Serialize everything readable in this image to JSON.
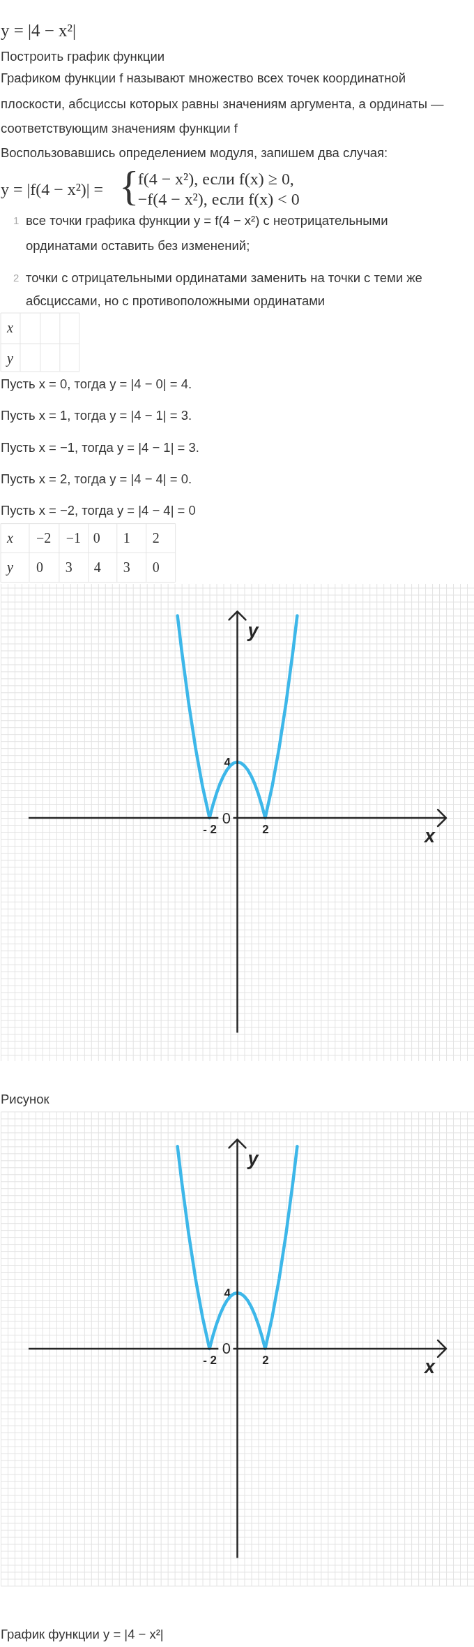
{
  "chart_data": [
    {
      "type": "line",
      "title": "y = |4 − x²|",
      "subtitle": "Построить график функции",
      "annotations": [
        "Графиком функции f называют множество всех точек координатной",
        "плоскости, абсциссы которых равны значениям аргумента, а ординаты —",
        "соответствующим значениям функции f",
        "Воспользовавшись определением модуля, запишем два случая:",
        "y = |f(4 − x²)| =",
        "{",
        "f(4 − x²), если f(x) ≥ 0,",
        "−f(4 − x²), если f(x) < 0",
        "1",
        "все точки графика функции y = f(4 − x²) с неотрицательными",
        "ординатами оставить без изменений;",
        "2",
        "точки с отрицательными ординатами заменить на точки с теми же",
        "абсциссами, но с противоположными ординатами",
        "x",
        "y",
        "Пусть x = 0, тогда y = |4 − 0| = 4.",
        "Пусть x = 1, тогда y = |4 − 1| = 3.",
        "Пусть x = −1, тогда y = |4 − 1| = 3.",
        "Пусть x = 2, тогда y = |4 − 4| = 0.",
        "Пусть x = −2, тогда y = |4 − 4| = 0",
        "x",
        "−2",
        "−1",
        "0",
        "1",
        "2",
        "y",
        "0",
        "3",
        "4",
        "3",
        "0"
      ],
      "xlabel": "x",
      "ylabel": "y",
      "x": [
        -4.3,
        -4,
        -3.5,
        -3,
        -2.5,
        -2,
        -1.75,
        -1.5,
        -1.25,
        -1,
        -0.75,
        -0.5,
        -0.25,
        0,
        0.25,
        0.5,
        0.75,
        1,
        1.25,
        1.5,
        1.75,
        2,
        2.5,
        3,
        3.5,
        4,
        4.3
      ],
      "series": [
        {
          "color": "#3db7e9",
          "values": [
            14.5,
            12,
            8.25,
            5,
            2.25,
            0,
            0.94,
            1.75,
            2.44,
            3,
            3.44,
            3.75,
            3.94,
            4,
            3.94,
            3.75,
            3.44,
            3,
            2.44,
            1.75,
            0.94,
            0,
            2.25,
            5,
            8.25,
            12,
            14.5
          ]
        }
      ],
      "xlim": [
        -17,
        17
      ],
      "ylim": [
        -17.4,
        16.8
      ],
      "xticks": [
        {
          "value": -17,
          "label": null
        },
        {
          "value": -16.5,
          "label": null
        },
        {
          "value": -16,
          "label": null
        },
        {
          "value": -15.5,
          "label": null
        },
        {
          "value": -15,
          "label": null
        },
        {
          "value": -14.5,
          "label": null
        },
        {
          "value": -14,
          "label": null
        },
        {
          "value": -13.5,
          "label": null
        },
        {
          "value": -13,
          "label": null
        },
        {
          "value": -12.5,
          "label": null
        },
        {
          "value": -12,
          "label": null
        },
        {
          "value": -11.5,
          "label": null
        },
        {
          "value": -11,
          "label": null
        },
        {
          "value": -10.5,
          "label": null
        },
        {
          "value": -10,
          "label": null
        },
        {
          "value": -9.5,
          "label": null
        },
        {
          "value": -9,
          "label": null
        },
        {
          "value": -8.5,
          "label": null
        },
        {
          "value": -8,
          "label": null
        },
        {
          "value": -7.5,
          "label": null
        },
        {
          "value": -7,
          "label": null
        },
        {
          "value": -6.5,
          "label": null
        },
        {
          "value": -6,
          "label": null
        },
        {
          "value": -5.5,
          "label": null
        },
        {
          "value": -5,
          "label": null
        },
        {
          "value": -4.5,
          "label": null
        },
        {
          "value": -4,
          "label": null
        },
        {
          "value": -3.5,
          "label": null
        },
        {
          "value": -3,
          "label": null
        },
        {
          "value": -2.5,
          "label": null
        },
        {
          "value": -2,
          "label": "- 2"
        },
        {
          "value": -1.5,
          "label": null
        },
        {
          "value": -1,
          "label": null
        },
        {
          "value": -0.5,
          "label": null
        },
        {
          "value": 0,
          "label": null
        },
        {
          "value": 0.5,
          "label": null
        },
        {
          "value": 1,
          "label": null
        },
        {
          "value": 1.5,
          "label": null
        },
        2,
        {
          "value": 2.5,
          "label": null
        },
        {
          "value": 3,
          "label": null
        },
        {
          "value": 3.5,
          "label": null
        },
        {
          "value": 4,
          "label": null
        },
        {
          "value": 4.5,
          "label": null
        },
        {
          "value": 5,
          "label": null
        },
        {
          "value": 5.5,
          "label": null
        },
        {
          "value": 6,
          "label": null
        },
        {
          "value": 6.5,
          "label": null
        },
        {
          "value": 7,
          "label": null
        },
        {
          "value": 7.5,
          "label": null
        },
        {
          "value": 8,
          "label": null
        },
        {
          "value": 8.5,
          "label": null
        },
        {
          "value": 9,
          "label": null
        },
        {
          "value": 9.5,
          "label": null
        },
        {
          "value": 10,
          "label": null
        },
        {
          "value": 10.5,
          "label": null
        },
        {
          "value": 11,
          "label": null
        },
        {
          "value": 11.5,
          "label": null
        },
        {
          "value": 12,
          "label": null
        },
        {
          "value": 12.5,
          "label": null
        },
        {
          "value": 13,
          "label": null
        },
        {
          "value": 13.5,
          "label": null
        },
        {
          "value": 14,
          "label": null
        },
        {
          "value": 14.5,
          "label": null
        },
        {
          "value": 15,
          "label": null
        },
        {
          "value": 15.5,
          "label": null
        },
        {
          "value": 16,
          "label": null
        },
        {
          "value": 16.5,
          "label": null
        },
        {
          "value": 17,
          "label": null
        }
      ],
      "yticks": [
        {
          "value": -17,
          "label": null
        },
        {
          "value": -16.5,
          "label": null
        },
        {
          "value": -16,
          "label": null
        },
        {
          "value": -15.5,
          "label": null
        },
        {
          "value": -15,
          "label": null
        },
        {
          "value": -14.5,
          "label": null
        },
        {
          "value": -14,
          "label": null
        },
        {
          "value": -13.5,
          "label": null
        },
        {
          "value": -13,
          "label": null
        },
        {
          "value": -12.5,
          "label": null
        },
        {
          "value": -12,
          "label": null
        },
        {
          "value": -11.5,
          "label": null
        },
        {
          "value": -11,
          "label": null
        },
        {
          "value": -10.5,
          "label": null
        },
        {
          "value": -10,
          "label": null
        },
        {
          "value": -9.5,
          "label": null
        },
        {
          "value": -9,
          "label": null
        },
        {
          "value": -8.5,
          "label": null
        },
        {
          "value": -8,
          "label": null
        },
        {
          "value": -7.5,
          "label": null
        },
        {
          "value": -7,
          "label": null
        },
        {
          "value": -6.5,
          "label": null
        },
        {
          "value": -6,
          "label": null
        },
        {
          "value": -5.5,
          "label": null
        },
        {
          "value": -5,
          "label": null
        },
        {
          "value": -4.5,
          "label": null
        },
        {
          "value": -4,
          "label": null
        },
        {
          "value": -3.5,
          "label": null
        },
        {
          "value": -3,
          "label": null
        },
        {
          "value": -2.5,
          "label": null
        },
        {
          "value": -2,
          "label": null
        },
        {
          "value": -1.5,
          "label": null
        },
        {
          "value": -1,
          "label": null
        },
        {
          "value": -0.5,
          "label": null
        },
        0,
        {
          "value": 0.5,
          "label": null
        },
        {
          "value": 1,
          "label": null
        },
        {
          "value": 1.5,
          "label": null
        },
        {
          "value": 2,
          "label": null
        },
        {
          "value": 2.5,
          "label": null
        },
        {
          "value": 3,
          "label": null
        },
        {
          "value": 3.5,
          "label": null
        },
        4,
        {
          "value": 4.5,
          "label": null
        },
        {
          "value": 5,
          "label": null
        },
        {
          "value": 5.5,
          "label": null
        },
        {
          "value": 6,
          "label": null
        },
        {
          "value": 6.5,
          "label": null
        },
        {
          "value": 7,
          "label": null
        },
        {
          "value": 7.5,
          "label": null
        },
        {
          "value": 8,
          "label": null
        },
        {
          "value": 8.5,
          "label": null
        },
        {
          "value": 9,
          "label": null
        },
        {
          "value": 9.5,
          "label": null
        },
        {
          "value": 10,
          "label": null
        },
        {
          "value": 10.5,
          "label": null
        },
        {
          "value": 11,
          "label": null
        },
        {
          "value": 11.5,
          "label": null
        },
        {
          "value": 12,
          "label": null
        },
        {
          "value": 12.5,
          "label": null
        },
        {
          "value": 13,
          "label": null
        },
        {
          "value": 13.5,
          "label": null
        },
        {
          "value": 14,
          "label": null
        },
        {
          "value": 14.5,
          "label": null
        },
        {
          "value": 15,
          "label": null
        },
        {
          "value": 15.5,
          "label": null
        },
        {
          "value": 16,
          "label": null
        },
        {
          "value": 16.5,
          "label": null
        }
      ],
      "grid": true,
      "line_style": "solid"
    },
    {
      "type": "line",
      "title": "Рисунок",
      "annotations": [
        "График функции y = |4 − x²|"
      ],
      "xlabel": "x",
      "ylabel": "y",
      "x": [
        -4.3,
        -4,
        -3.5,
        -3,
        -2.5,
        -2,
        -1.75,
        -1.5,
        -1.25,
        -1,
        -0.75,
        -0.5,
        -0.25,
        0,
        0.25,
        0.5,
        0.75,
        1,
        1.25,
        1.5,
        1.75,
        2,
        2.5,
        3,
        3.5,
        4,
        4.3
      ],
      "series": [
        {
          "color": "#3db7e9",
          "values": [
            14.5,
            12,
            8.25,
            5,
            2.25,
            0,
            0.94,
            1.75,
            2.44,
            3,
            3.44,
            3.75,
            3.94,
            4,
            3.94,
            3.75,
            3.44,
            3,
            2.44,
            1.75,
            0.94,
            0,
            2.25,
            5,
            8.25,
            12,
            14.5
          ]
        }
      ],
      "xlim": [
        -17,
        17
      ],
      "ylim": [
        -17,
        17
      ],
      "xticks": [
        {
          "value": -17,
          "label": null
        },
        {
          "value": -16.5,
          "label": null
        },
        {
          "value": -16,
          "label": null
        },
        {
          "value": -15.5,
          "label": null
        },
        {
          "value": -15,
          "label": null
        },
        {
          "value": -14.5,
          "label": null
        },
        {
          "value": -14,
          "label": null
        },
        {
          "value": -13.5,
          "label": null
        },
        {
          "value": -13,
          "label": null
        },
        {
          "value": -12.5,
          "label": null
        },
        {
          "value": -12,
          "label": null
        },
        {
          "value": -11.5,
          "label": null
        },
        {
          "value": -11,
          "label": null
        },
        {
          "value": -10.5,
          "label": null
        },
        {
          "value": -10,
          "label": null
        },
        {
          "value": -9.5,
          "label": null
        },
        {
          "value": -9,
          "label": null
        },
        {
          "value": -8.5,
          "label": null
        },
        {
          "value": -8,
          "label": null
        },
        {
          "value": -7.5,
          "label": null
        },
        {
          "value": -7,
          "label": null
        },
        {
          "value": -6.5,
          "label": null
        },
        {
          "value": -6,
          "label": null
        },
        {
          "value": -5.5,
          "label": null
        },
        {
          "value": -5,
          "label": null
        },
        {
          "value": -4.5,
          "label": null
        },
        {
          "value": -4,
          "label": null
        },
        {
          "value": -3.5,
          "label": null
        },
        {
          "value": -3,
          "label": null
        },
        {
          "value": -2.5,
          "label": null
        },
        {
          "value": -2,
          "label": "- 2"
        },
        {
          "value": -1.5,
          "label": null
        },
        {
          "value": -1,
          "label": null
        },
        {
          "value": -0.5,
          "label": null
        },
        {
          "value": 0,
          "label": null
        },
        {
          "value": 0.5,
          "label": null
        },
        {
          "value": 1,
          "label": null
        },
        {
          "value": 1.5,
          "label": null
        },
        2,
        {
          "value": 2.5,
          "label": null
        },
        {
          "value": 3,
          "label": null
        },
        {
          "value": 3.5,
          "label": null
        },
        {
          "value": 4,
          "label": null
        },
        {
          "value": 4.5,
          "label": null
        },
        {
          "value": 5,
          "label": null
        },
        {
          "value": 5.5,
          "label": null
        },
        {
          "value": 6,
          "label": null
        },
        {
          "value": 6.5,
          "label": null
        },
        {
          "value": 7,
          "label": null
        },
        {
          "value": 7.5,
          "label": null
        },
        {
          "value": 8,
          "label": null
        },
        {
          "value": 8.5,
          "label": null
        },
        {
          "value": 9,
          "label": null
        },
        {
          "value": 9.5,
          "label": null
        },
        {
          "value": 10,
          "label": null
        },
        {
          "value": 10.5,
          "label": null
        },
        {
          "value": 11,
          "label": null
        },
        {
          "value": 11.5,
          "label": null
        },
        {
          "value": 12,
          "label": null
        },
        {
          "value": 12.5,
          "label": null
        },
        {
          "value": 13,
          "label": null
        },
        {
          "value": 13.5,
          "label": null
        },
        {
          "value": 14,
          "label": null
        },
        {
          "value": 14.5,
          "label": null
        },
        {
          "value": 15,
          "label": null
        },
        {
          "value": 15.5,
          "label": null
        },
        {
          "value": 16,
          "label": null
        },
        {
          "value": 16.5,
          "label": null
        },
        {
          "value": 17,
          "label": null
        }
      ],
      "yticks": [
        {
          "value": -17,
          "label": null
        },
        {
          "value": -16.5,
          "label": null
        },
        {
          "value": -16,
          "label": null
        },
        {
          "value": -15.5,
          "label": null
        },
        {
          "value": -15,
          "label": null
        },
        {
          "value": -14.5,
          "label": null
        },
        {
          "value": -14,
          "label": null
        },
        {
          "value": -13.5,
          "label": null
        },
        {
          "value": -13,
          "label": null
        },
        {
          "value": -12.5,
          "label": null
        },
        {
          "value": -12,
          "label": null
        },
        {
          "value": -11.5,
          "label": null
        },
        {
          "value": -11,
          "label": null
        },
        {
          "value": -10.5,
          "label": null
        },
        {
          "value": -10,
          "label": null
        },
        {
          "value": -9.5,
          "label": null
        },
        {
          "value": -9,
          "label": null
        },
        {
          "value": -8.5,
          "label": null
        },
        {
          "value": -8,
          "label": null
        },
        {
          "value": -7.5,
          "label": null
        },
        {
          "value": -7,
          "label": null
        },
        {
          "value": -6.5,
          "label": null
        },
        {
          "value": -6,
          "label": null
        },
        {
          "value": -5.5,
          "label": null
        },
        {
          "value": -5,
          "label": null
        },
        {
          "value": -4.5,
          "label": null
        },
        {
          "value": -4,
          "label": null
        },
        {
          "value": -3.5,
          "label": null
        },
        {
          "value": -3,
          "label": null
        },
        {
          "value": -2.5,
          "label": null
        },
        {
          "value": -2,
          "label": null
        },
        {
          "value": -1.5,
          "label": null
        },
        {
          "value": -1,
          "label": null
        },
        {
          "value": -0.5,
          "label": null
        },
        0,
        {
          "value": 0.5,
          "label": null
        },
        {
          "value": 1,
          "label": null
        },
        {
          "value": 1.5,
          "label": null
        },
        {
          "value": 2,
          "label": null
        },
        {
          "value": 2.5,
          "label": null
        },
        {
          "value": 3,
          "label": null
        },
        {
          "value": 3.5,
          "label": null
        },
        4,
        {
          "value": 4.5,
          "label": null
        },
        {
          "value": 5,
          "label": null
        },
        {
          "value": 5.5,
          "label": null
        },
        {
          "value": 6,
          "label": null
        },
        {
          "value": 6.5,
          "label": null
        },
        {
          "value": 7,
          "label": null
        },
        {
          "value": 7.5,
          "label": null
        },
        {
          "value": 8,
          "label": null
        },
        {
          "value": 8.5,
          "label": null
        },
        {
          "value": 9,
          "label": null
        },
        {
          "value": 9.5,
          "label": null
        },
        {
          "value": 10,
          "label": null
        },
        {
          "value": 10.5,
          "label": null
        },
        {
          "value": 11,
          "label": null
        },
        {
          "value": 11.5,
          "label": null
        },
        {
          "value": 12,
          "label": null
        },
        {
          "value": 12.5,
          "label": null
        },
        {
          "value": 13,
          "label": null
        },
        {
          "value": 13.5,
          "label": null
        },
        {
          "value": 14,
          "label": null
        },
        {
          "value": 14.5,
          "label": null
        },
        {
          "value": 15,
          "label": null
        },
        {
          "value": 15.5,
          "label": null
        },
        {
          "value": 16,
          "label": null
        },
        {
          "value": 16.5,
          "label": null
        },
        {
          "value": 17,
          "label": null
        }
      ],
      "grid": true,
      "line_style": "solid"
    }
  ]
}
